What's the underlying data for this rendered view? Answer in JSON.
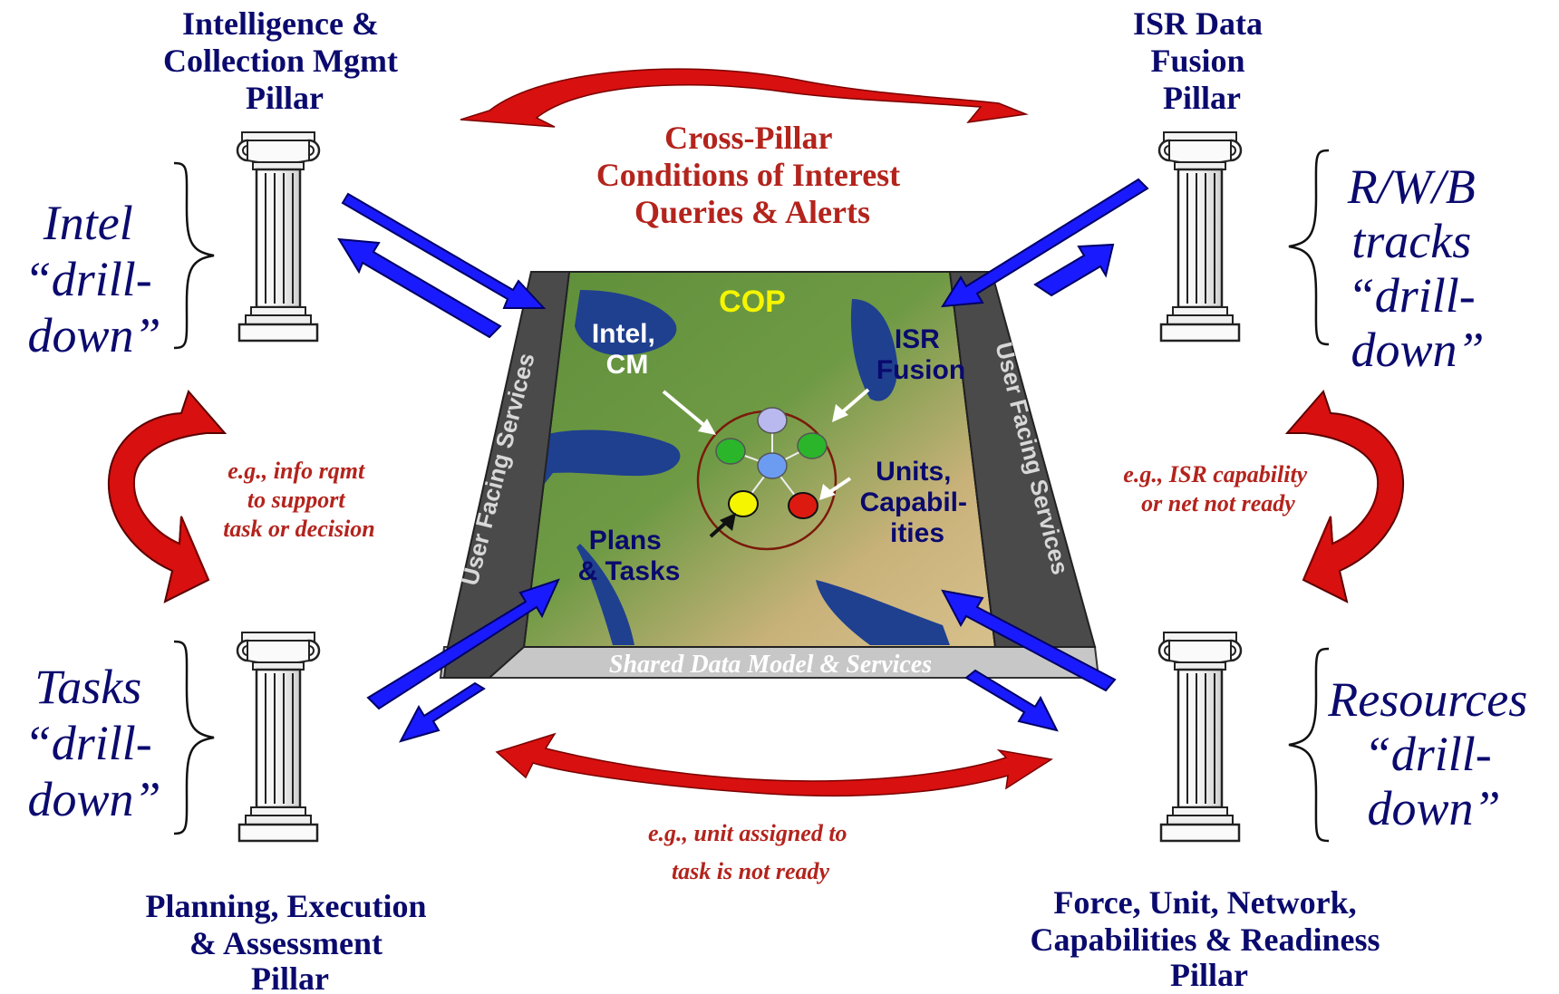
{
  "pillars": {
    "top_left": {
      "lines": [
        "Intelligence &",
        "Collection Mgmt",
        "Pillar"
      ]
    },
    "top_right": {
      "lines": [
        "ISR Data",
        "Fusion",
        "Pillar"
      ]
    },
    "bottom_left": {
      "lines": [
        "Planning, Execution",
        "& Assessment",
        "Pillar"
      ]
    },
    "bottom_right": {
      "lines": [
        "Force, Unit, Network,",
        "Capabilities & Readiness",
        "Pillar"
      ]
    }
  },
  "drilldowns": {
    "top_left": {
      "lines": [
        "Intel",
        "“drill-",
        "down”"
      ]
    },
    "top_right": {
      "lines": [
        "R/W/B",
        "tracks",
        "“drill-",
        "down”"
      ]
    },
    "bottom_left": {
      "lines": [
        "Tasks",
        "“drill-",
        "down”"
      ]
    },
    "bottom_right": {
      "lines": [
        "Resources",
        "“drill-",
        "down”"
      ]
    }
  },
  "cross_pillar": {
    "lines": [
      "Cross-Pillar",
      "Conditions of Interest",
      "Queries & Alerts"
    ]
  },
  "examples": {
    "left": {
      "lines": [
        "e.g., info rqmt",
        "to support",
        "task or decision"
      ]
    },
    "right": {
      "lines": [
        "e.g., ISR capability",
        "or net not ready"
      ]
    },
    "bottom": {
      "lines": [
        "e.g., unit assigned to",
        "task is not ready"
      ]
    }
  },
  "platform": {
    "left_side_label": "User Facing Services",
    "right_side_label": "User Facing Services",
    "base_label": "Shared Data Model & Services"
  },
  "map_labels": {
    "cop": "COP",
    "intel_cm": [
      "Intel,",
      "CM"
    ],
    "isr_fusion": [
      "ISR",
      "Fusion"
    ],
    "units_capabilities": [
      "Units,",
      "Capabil-",
      "ities"
    ],
    "plans_tasks": [
      "Plans",
      "& Tasks"
    ]
  },
  "colors": {
    "navy_text": "#0a0a6e",
    "red_text": "#b3241d",
    "blue_arrow": "#1a1aff",
    "red_arrow": "#d81010",
    "platform_side": "#4a4a4a",
    "platform_base": "#cfcfcf",
    "cop_yellow": "#f5f500"
  },
  "icons": [
    "pillar-column-icon",
    "curly-brace-icon",
    "blue-double-arrow-icon",
    "red-curved-arrow-icon"
  ]
}
